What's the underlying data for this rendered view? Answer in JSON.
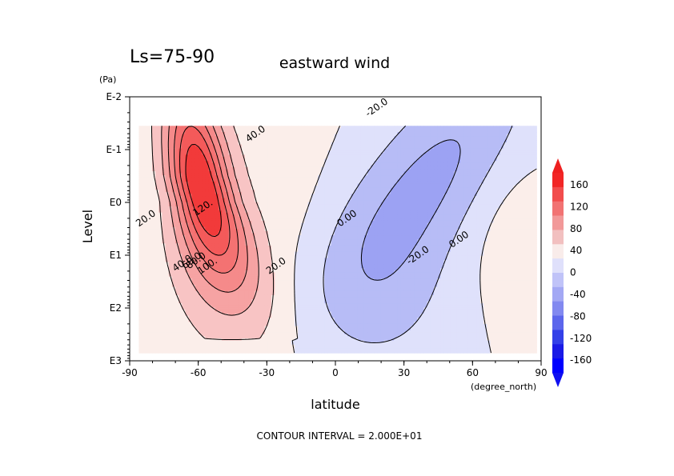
{
  "chart_data": {
    "type": "heatmap",
    "plot_kind": "filled contour (latitude-height cross section)",
    "title_left": "Ls=75-90",
    "title": "eastward wind",
    "xlabel": "latitude",
    "x_unit": "(degree_north)",
    "ylabel": "Level",
    "y_unit": "(Pa)",
    "x_ticks": [
      -90,
      -60,
      -30,
      0,
      30,
      60,
      90
    ],
    "xlim": [
      -90,
      90
    ],
    "y_ticks": [
      "E-2",
      "E-1",
      "E0",
      "E1",
      "E2",
      "E3"
    ],
    "y_scale": "log",
    "ylim_pa": [
      1000,
      0.01
    ],
    "grid": false,
    "footer": "CONTOUR INTERVAL = 2.000E+01",
    "contour_labels": [
      {
        "text": "40.0",
        "lat": -35,
        "logp": -1.3
      },
      {
        "text": "120.",
        "lat": -58,
        "logp": 0.1
      },
      {
        "text": "20.0",
        "lat": -83,
        "logp": 0.3
      },
      {
        "text": "100.",
        "lat": -56,
        "logp": 1.2
      },
      {
        "text": "80.0",
        "lat": -61,
        "logp": 1.1
      },
      {
        "text": "60.0",
        "lat": -63,
        "logp": 1.1
      },
      {
        "text": "40.0",
        "lat": -67,
        "logp": 1.15
      },
      {
        "text": "20.0",
        "lat": -26,
        "logp": 1.2
      },
      {
        "text": "-20.0",
        "lat": 18,
        "logp": -1.8
      },
      {
        "text": "0.00",
        "lat": 5,
        "logp": 0.3
      },
      {
        "text": "-20.0",
        "lat": 36,
        "logp": 1.0
      },
      {
        "text": "0.00",
        "lat": 54,
        "logp": 0.7
      }
    ],
    "colorbar": {
      "labels": [
        "160",
        "120",
        "80",
        "40",
        "0",
        "-40",
        "-80",
        "-120",
        "-160"
      ],
      "colors": [
        "#f22626",
        "#f24d4d",
        "#f27373",
        "#f29999",
        "#f2c0c0",
        "#f9ecea",
        "#dfe0fb",
        "#c0c3f8",
        "#a3a8f4",
        "#8289f0",
        "#5c66ec",
        "#3340e8",
        "#1a1ae6",
        "#0000ff"
      ],
      "top_color": "#ee2020",
      "bottom_color": "#1010f0"
    },
    "field": {
      "description": "Zonal-mean eastward wind (m/s); southern hemisphere jet peaking > 120 near 60S, easterlies up to about -40 in the northern tropics/midlatitudes",
      "levels": [
        -40,
        -20,
        0,
        20,
        40,
        60,
        80,
        100,
        120,
        140
      ],
      "max_value": 130,
      "min_value": -42
    }
  }
}
